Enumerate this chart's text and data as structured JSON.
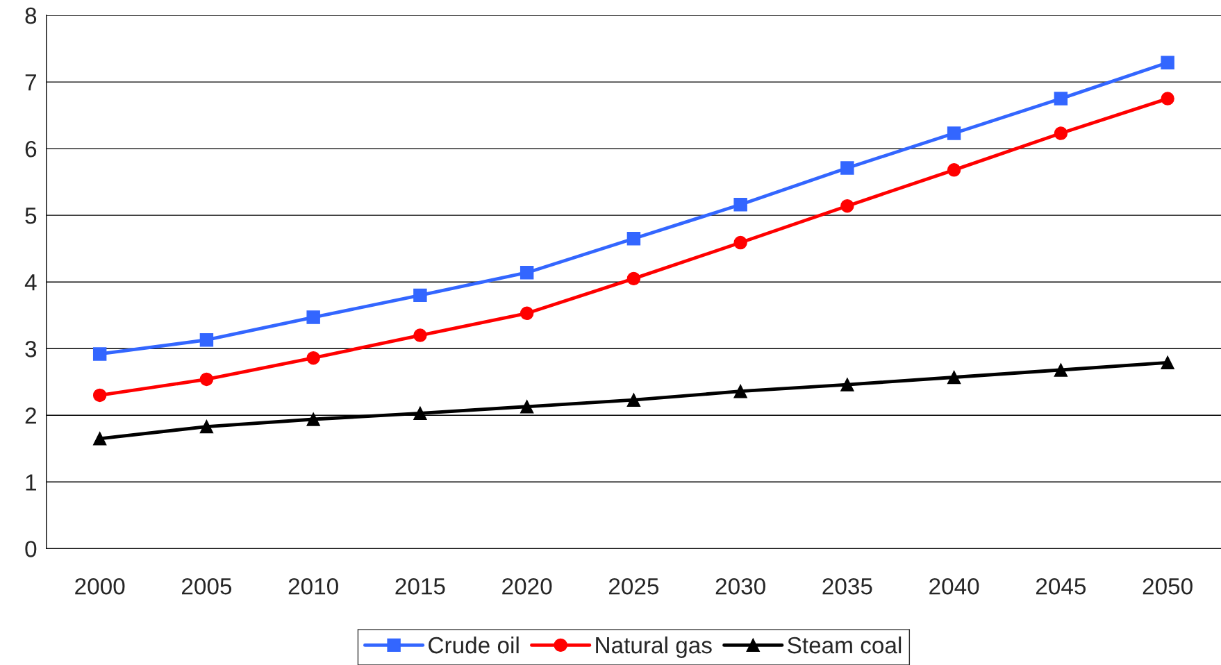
{
  "chart_data": {
    "type": "line",
    "categories": [
      "2000",
      "2005",
      "2010",
      "2015",
      "2020",
      "2025",
      "2030",
      "2035",
      "2040",
      "2045",
      "2050"
    ],
    "series": [
      {
        "name": "Crude oil",
        "color": "#3366ff",
        "marker": "square",
        "values": [
          2.92,
          3.13,
          3.47,
          3.8,
          4.14,
          4.65,
          5.16,
          5.71,
          6.23,
          6.75,
          7.29
        ]
      },
      {
        "name": "Natural gas",
        "color": "#ff0000",
        "marker": "circle",
        "values": [
          2.3,
          2.54,
          2.86,
          3.2,
          3.53,
          4.05,
          4.59,
          5.14,
          5.68,
          6.23,
          6.75
        ]
      },
      {
        "name": "Steam coal",
        "color": "#000000",
        "marker": "triangle",
        "values": [
          1.65,
          1.83,
          1.94,
          2.03,
          2.13,
          2.23,
          2.36,
          2.46,
          2.57,
          2.68,
          2.79
        ]
      }
    ],
    "ylim": [
      0,
      8
    ],
    "yticks": [
      0,
      1,
      2,
      3,
      4,
      5,
      6,
      7,
      8
    ],
    "grid": "y",
    "legend": "bottom"
  }
}
